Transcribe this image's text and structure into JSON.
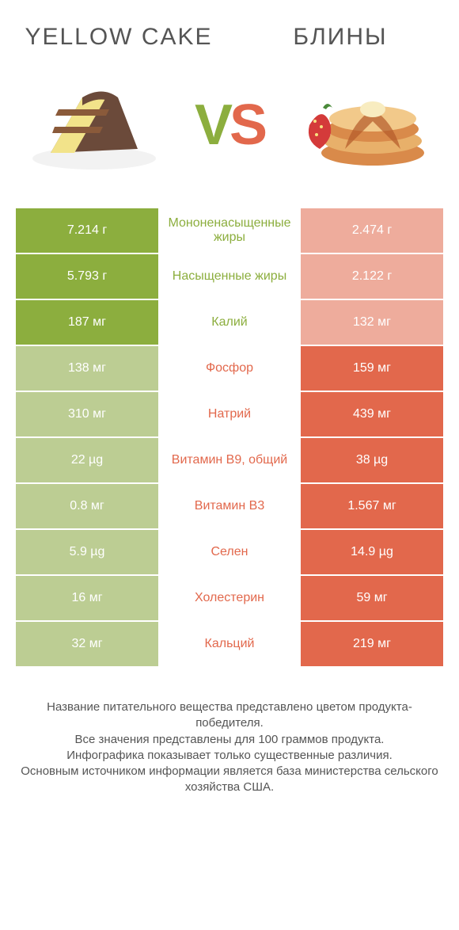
{
  "header": {
    "left_title": "YELLOW CAKE",
    "right_title": "БЛИНЫ",
    "vs_v": "V",
    "vs_s": "S"
  },
  "colors": {
    "green": "#8cae3e",
    "orange": "#e2684c",
    "muted_green": "#bccd93",
    "muted_orange": "#eeac9c",
    "white": "#ffffff",
    "text_gray": "#555555"
  },
  "table": {
    "left_winner_bg": "bg-green",
    "left_loser_bg": "bg-muted-green",
    "right_winner_bg": "bg-orange",
    "right_loser_bg": "bg-muted-orange",
    "rows": [
      {
        "left": "7.214 г",
        "mid": "Мононенасыщенные жиры",
        "right": "2.474 г",
        "winner": "left"
      },
      {
        "left": "5.793 г",
        "mid": "Насыщенные жиры",
        "right": "2.122 г",
        "winner": "left"
      },
      {
        "left": "187 мг",
        "mid": "Калий",
        "right": "132 мг",
        "winner": "left"
      },
      {
        "left": "138 мг",
        "mid": "Фосфор",
        "right": "159 мг",
        "winner": "right"
      },
      {
        "left": "310 мг",
        "mid": "Натрий",
        "right": "439 мг",
        "winner": "right"
      },
      {
        "left": "22 µg",
        "mid": "Витамин B9, общий",
        "right": "38 µg",
        "winner": "right"
      },
      {
        "left": "0.8 мг",
        "mid": "Витамин B3",
        "right": "1.567 мг",
        "winner": "right"
      },
      {
        "left": "5.9 µg",
        "mid": "Селен",
        "right": "14.9 µg",
        "winner": "right"
      },
      {
        "left": "16 мг",
        "mid": "Холестерин",
        "right": "59 мг",
        "winner": "right"
      },
      {
        "left": "32 мг",
        "mid": "Кальций",
        "right": "219 мг",
        "winner": "right"
      }
    ]
  },
  "footer": {
    "line1": "Название питательного вещества представлено цветом продукта-победителя.",
    "line2": "Все значения представлены для 100 граммов продукта.",
    "line3": "Инфографика показывает только существенные различия.",
    "line4": "Основным источником информации является база министерства сельского хозяйства США."
  }
}
